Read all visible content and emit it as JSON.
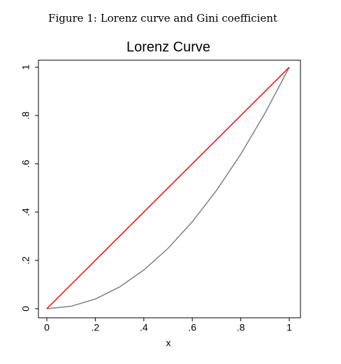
{
  "chart_data": {
    "type": "line",
    "caption": "Figure 1: Lorenz curve and Gini coefficient",
    "title": "Lorenz Curve",
    "x_label": "x",
    "series": [
      {
        "color": "#808080",
        "x": [
          0,
          0.1,
          0.2,
          0.3,
          0.4,
          0.5,
          0.6,
          0.7,
          0.8,
          0.9,
          1
        ],
        "values": [
          0,
          0.01,
          0.04,
          0.09,
          0.16,
          0.25,
          0.36,
          0.49,
          0.64,
          0.81,
          1
        ]
      },
      {
        "color": "#ff0000",
        "x": [
          0,
          1
        ],
        "values": [
          0,
          1
        ]
      }
    ],
    "xlim": [
      0,
      1
    ],
    "ylim": [
      0,
      1
    ],
    "xticks": [
      0,
      {
        "value": 0.2,
        "label": ".2"
      },
      {
        "value": 0.4,
        "label": ".4"
      },
      {
        "value": 0.6,
        "label": ".6"
      },
      {
        "value": 0.8,
        "label": ".8"
      },
      1
    ],
    "yticks": [
      0,
      {
        "value": 0.2,
        "label": ".2"
      },
      {
        "value": 0.4,
        "label": ".4"
      },
      {
        "value": 0.6,
        "label": ".6"
      },
      {
        "value": 0.8,
        "label": ".8"
      },
      1
    ],
    "grid": false
  }
}
